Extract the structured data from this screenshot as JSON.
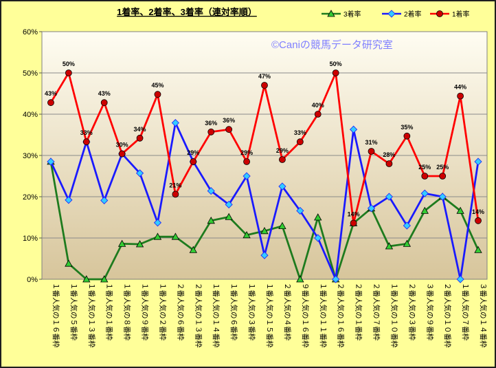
{
  "chart_data": {
    "type": "line",
    "title": "1着率、2着率、3着率（連対率順）",
    "watermark": "©Caniの競馬データ研究室",
    "xlabel": "",
    "ylabel": "",
    "ylim": [
      0,
      60
    ],
    "y_ticks": [
      "0%",
      "10%",
      "20%",
      "30%",
      "40%",
      "50%",
      "60%"
    ],
    "grid": true,
    "legend_position": "top-right",
    "categories": [
      "１番人気の１６番枠",
      "１番人気の５番枠",
      "１番人気の１３番枠",
      "１番人気の１番枠",
      "１番人気の８番枠",
      "１番人気の９番枠",
      "１番人気の２番枠",
      "２番人気の６番枠",
      "２番人気の１３番枠",
      "１番人気の１４番枠",
      "１番人気の６番枠",
      "１番人気の３番枠",
      "１番人気の１５番枠",
      "２番人気の４番枠",
      "９番人気の１６番枠",
      "１番人気の１１番枠",
      "２番人気の１６番枠",
      "２番人気の１番枠",
      "２番人気の７番枠",
      "１番人気の１０番枠",
      "２番人気の３番枠",
      "３番人気の９番枠",
      "２番人気の１０番枠",
      "１番人気の７番枠",
      "３番人気の１４番枠"
    ],
    "series": [
      {
        "name": "3着率",
        "color": "#1e7b1e",
        "marker": "triangle",
        "marker_color": "#33cc33",
        "values": [
          28.5,
          3.8,
          0,
          0,
          8.6,
          8.5,
          10.3,
          10.3,
          7.1,
          14.2,
          15.1,
          10.7,
          11.7,
          12.9,
          0,
          15,
          0,
          13.6,
          17.2,
          8,
          8.6,
          16.6,
          20,
          16.6,
          7.1
        ]
      },
      {
        "name": "2着率",
        "color": "#1a1aff",
        "marker": "diamond",
        "marker_color": "#33ccff",
        "values": [
          28.5,
          19.2,
          33.3,
          19.1,
          30.4,
          25.7,
          13.7,
          37.9,
          28.5,
          21.4,
          18.1,
          25,
          5.8,
          22.5,
          16.6,
          10,
          0,
          36.3,
          17.2,
          20,
          13,
          20.8,
          20,
          0,
          28.5
        ]
      },
      {
        "name": "1着率",
        "color": "#ff0000",
        "marker": "circle",
        "marker_color": "#cc0000",
        "values": [
          42.8,
          50,
          33.3,
          42.8,
          30.4,
          34.2,
          44.8,
          20.6,
          28.5,
          35.7,
          36.3,
          28.5,
          47,
          29,
          33.3,
          40,
          50,
          13.6,
          31,
          28,
          34.7,
          25,
          25,
          44.4,
          14.2
        ],
        "data_labels": [
          "43%",
          "50%",
          "33%",
          "43%",
          "30%",
          "34%",
          "45%",
          "21%",
          "29%",
          "36%",
          "36%",
          "29%",
          "47%",
          "29%",
          "33%",
          "40%",
          "50%",
          "14%",
          "31%",
          "28%",
          "35%",
          "25%",
          "25%",
          "44%",
          "14%"
        ]
      }
    ]
  }
}
